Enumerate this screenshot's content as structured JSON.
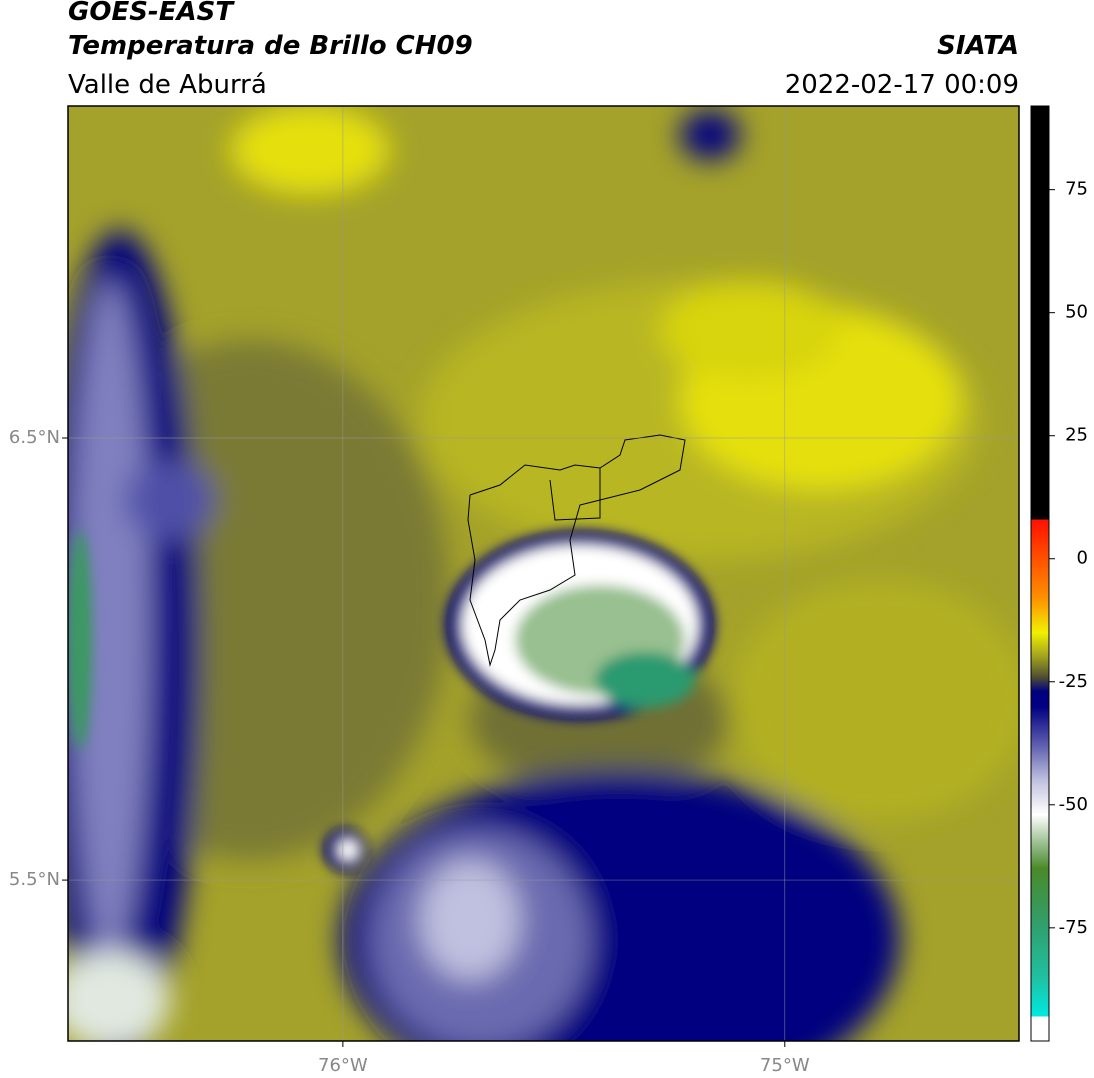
{
  "header": {
    "satellite": "GOES-EAST",
    "title": "Temperatura de Brillo CH09",
    "agency": "SIATA",
    "region": "Valle de Aburrá",
    "datetime": "2022-02-17 00:09"
  },
  "map": {
    "xlim": [
      -76.622,
      -74.47
    ],
    "ylim": [
      5.136,
      7.251
    ],
    "xticks": [
      {
        "value": -76,
        "label": "76°W"
      },
      {
        "value": -75,
        "label": "75°W"
      }
    ],
    "yticks": [
      {
        "value": 6.5,
        "label": "6.5°N"
      },
      {
        "value": 5.5,
        "label": "5.5°N"
      }
    ],
    "grid": true
  },
  "colorbar": {
    "lim": [
      -98,
      92
    ],
    "ticks": [
      75,
      50,
      25,
      0,
      -25,
      -50,
      -75
    ],
    "stops": [
      {
        "value": -98,
        "color": "#ffffff"
      },
      {
        "value": -93,
        "color": "#ffffff"
      },
      {
        "value": -93,
        "color": "#00e8e0"
      },
      {
        "value": -85,
        "color": "#20c0a0"
      },
      {
        "value": -75,
        "color": "#30a070"
      },
      {
        "value": -63,
        "color": "#4a8a2a"
      },
      {
        "value": -57,
        "color": "#a8c8a0"
      },
      {
        "value": -52,
        "color": "#ffffff"
      },
      {
        "value": -45,
        "color": "#c0c0e0"
      },
      {
        "value": -38,
        "color": "#6060b0"
      },
      {
        "value": -30,
        "color": "#000080"
      },
      {
        "value": -27,
        "color": "#000080"
      },
      {
        "value": -24,
        "color": "#505030"
      },
      {
        "value": -20,
        "color": "#a0a020"
      },
      {
        "value": -15,
        "color": "#f0f000"
      },
      {
        "value": -8,
        "color": "#ff9000"
      },
      {
        "value": 4,
        "color": "#ff3000"
      },
      {
        "value": 8,
        "color": "#ff1000"
      },
      {
        "value": 8,
        "color": "#000000"
      },
      {
        "value": 92,
        "color": "#000000"
      }
    ]
  }
}
